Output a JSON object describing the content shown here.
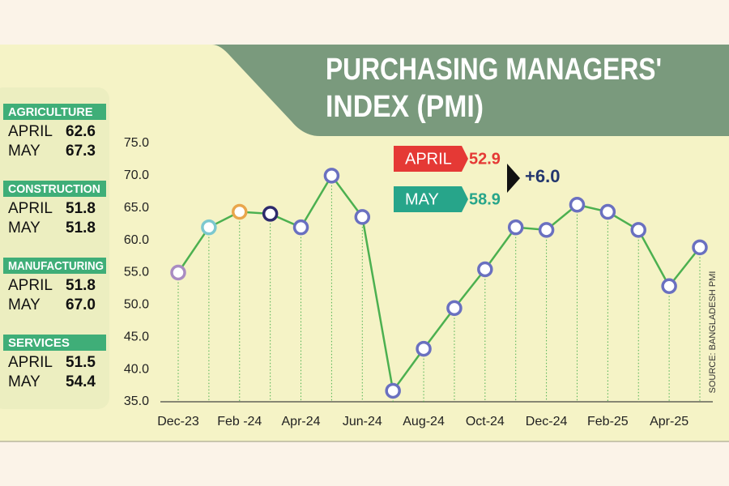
{
  "chart_data": {
    "type": "line",
    "title_lines": [
      "PURCHASING MANAGERS'",
      "INDEX (PMI)"
    ],
    "source": "SOURCE: BANGLADESH PMI",
    "categories": [
      "Dec-23",
      null,
      "Feb -24",
      null,
      "Apr-24",
      null,
      "Jun-24",
      null,
      "Aug-24",
      null,
      "Oct-24",
      null,
      "Dec-24",
      null,
      "Feb-25",
      null,
      "Apr-25",
      null
    ],
    "series": [
      {
        "name": "PMI",
        "color": "#4cb050",
        "values": [
          55.0,
          62.0,
          64.4,
          64.1,
          62.0,
          70.0,
          63.6,
          36.7,
          43.2,
          49.5,
          55.5,
          62.0,
          61.6,
          65.5,
          64.4,
          61.6,
          52.9,
          58.9
        ]
      }
    ],
    "marker_colors": [
      "#a98cc2",
      "#7cc8cf",
      "#e9a64c",
      "#2d2a6c",
      "#6a70c0",
      "#6a70c0",
      "#6a70c0",
      "#6a70c0",
      "#6a70c0",
      "#6a70c0",
      "#6a70c0",
      "#6a70c0",
      "#6a70c0",
      "#6a70c0",
      "#6a70c0",
      "#6a70c0",
      "#6a70c0",
      "#6a70c0"
    ],
    "ylim": [
      35,
      75
    ],
    "yticks": [
      {
        "value": 35,
        "label": "35.0"
      },
      {
        "value": 40,
        "label": "40.0"
      },
      {
        "value": 45,
        "label": "45.0"
      },
      {
        "value": 50,
        "label": "50.0"
      },
      {
        "value": 55,
        "label": "55.0"
      },
      {
        "value": 60,
        "label": "60.0"
      },
      {
        "value": 65,
        "label": "65.0"
      },
      {
        "value": 70,
        "label": "70.0"
      },
      {
        "value": 75,
        "label": "75.0"
      }
    ],
    "callout": {
      "april_label": "APRIL",
      "april_value": 52.9,
      "april_color": "#e53935",
      "may_label": "MAY",
      "may_value": 58.9,
      "may_color": "#27a58a",
      "change": {
        "value": 6,
        "label": "+6.0"
      }
    },
    "sectors": {
      "row_labels": [
        "APRIL",
        "MAY"
      ],
      "items": [
        {
          "name": "AGRICULTURE",
          "april": 62.6,
          "may": 67.3
        },
        {
          "name": "CONSTRUCTION",
          "april": 51.8,
          "may": 51.8
        },
        {
          "name": "MANUFACTURING",
          "april": 51.8,
          "may": {
            "value": 67,
            "label": "67.0"
          }
        },
        {
          "name": "SERVICES",
          "april": 51.5,
          "may": 54.4
        }
      ]
    }
  }
}
